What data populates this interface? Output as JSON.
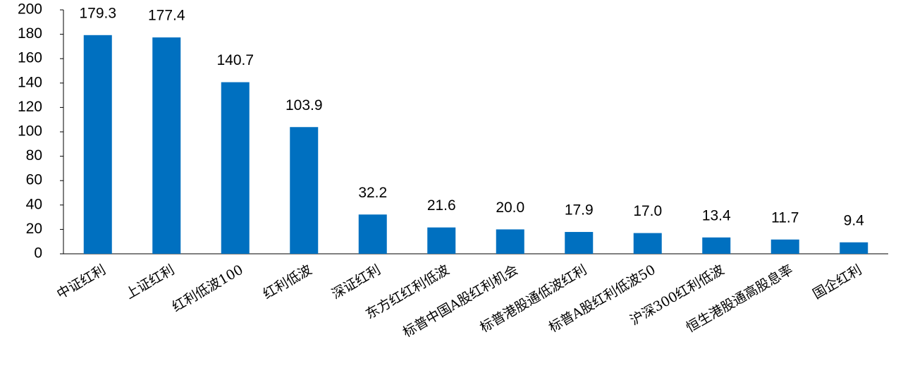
{
  "chart_data": {
    "type": "bar",
    "categories": [
      "中证红利",
      "上证红利",
      "红利低波100",
      "红利低波",
      "深证红利",
      "东方红红利低波",
      "标普中国A股红利机会",
      "标普港股通低波红利",
      "标普A股红利低波50",
      "沪深300红利低波",
      "恒生港股通高股息率",
      "国企红利"
    ],
    "values": [
      179.3,
      177.4,
      140.7,
      103.9,
      32.2,
      21.6,
      20.0,
      17.9,
      17.0,
      13.4,
      11.7,
      9.4
    ],
    "value_labels": [
      "179.3",
      "177.4",
      "140.7",
      "103.9",
      "32.2",
      "21.6",
      "20.0",
      "17.9",
      "17.0",
      "13.4",
      "11.7",
      "9.4"
    ],
    "color": "#0070c0",
    "ylim": [
      0,
      200
    ],
    "yticks": [
      0,
      20,
      40,
      60,
      80,
      100,
      120,
      140,
      160,
      180,
      200
    ],
    "grid": false
  }
}
